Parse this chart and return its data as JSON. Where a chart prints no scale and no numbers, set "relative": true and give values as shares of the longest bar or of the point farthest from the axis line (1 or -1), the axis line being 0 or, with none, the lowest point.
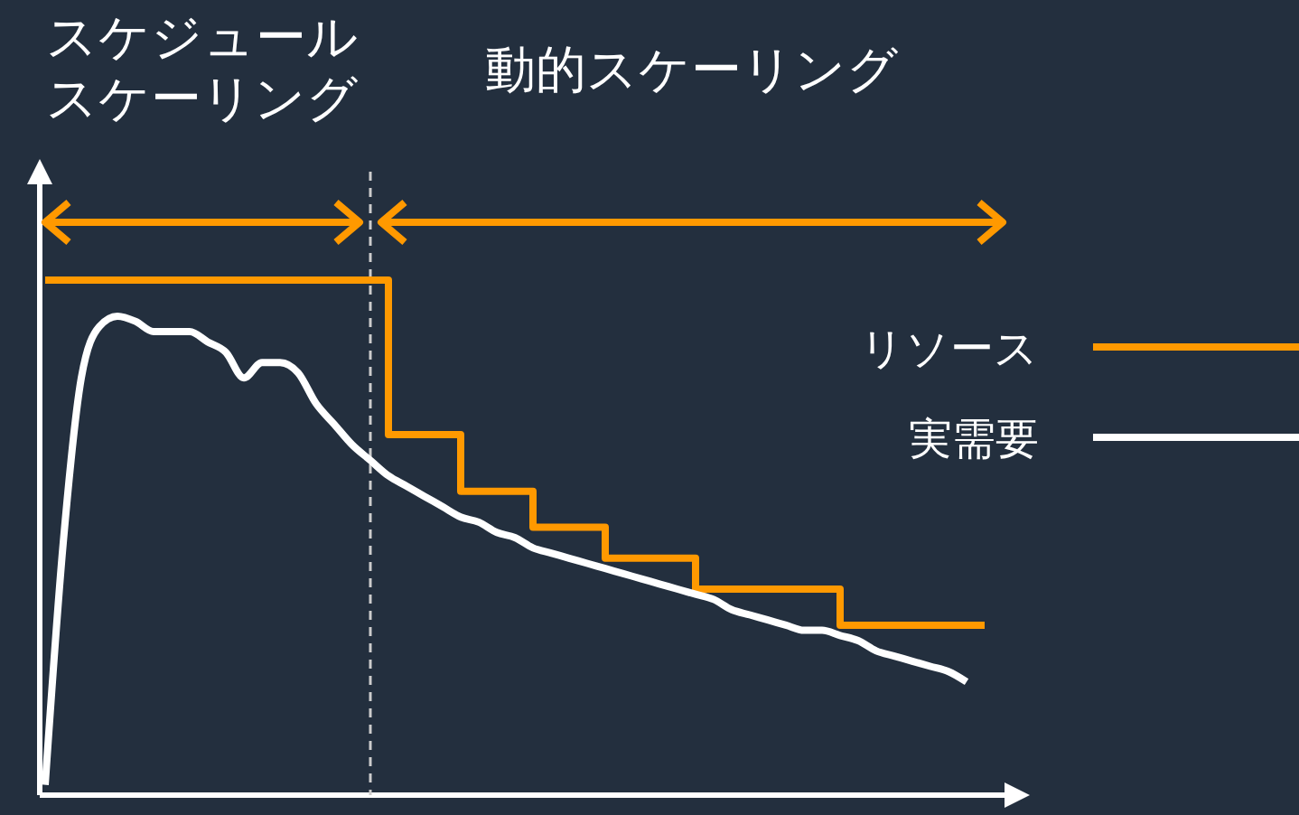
{
  "chart_data": {
    "type": "step",
    "relative": true,
    "categories": [
      null,
      null,
      null,
      null,
      null,
      null,
      null,
      null,
      null,
      null,
      null,
      null,
      null,
      null,
      null,
      null,
      null,
      null,
      null,
      null,
      null,
      null,
      null,
      null,
      null,
      null,
      null,
      null,
      null,
      null,
      null,
      null,
      null,
      null,
      null,
      null,
      null,
      null,
      null,
      null,
      null,
      null,
      null,
      null,
      null,
      null,
      null,
      null,
      null,
      null,
      null,
      null,
      null
    ],
    "series": [
      {
        "name": "リソース",
        "color": "#ff9900",
        "values": [
          1,
          1,
          1,
          1,
          1,
          1,
          1,
          1,
          1,
          1,
          1,
          1,
          1,
          1,
          1,
          1,
          1,
          1,
          1,
          0.7,
          0.7,
          0.7,
          0.7,
          0.59,
          0.59,
          0.59,
          0.59,
          0.52,
          0.52,
          0.52,
          0.52,
          0.46,
          0.46,
          0.46,
          0.46,
          0.46,
          0.4,
          0.4,
          0.4,
          0.4,
          0.4,
          0.4,
          0.4,
          0.4,
          0.33,
          0.33,
          0.33,
          0.33,
          0.33,
          0.33,
          0.33,
          0.33,
          0.33
        ]
      },
      {
        "name": "実需要",
        "color": "#ffffff",
        "type": "line",
        "values": [
          0.02,
          0.49,
          0.81,
          0.91,
          0.93,
          0.92,
          0.9,
          0.9,
          0.9,
          0.88,
          0.86,
          0.81,
          0.84,
          0.84,
          0.82,
          0.76,
          0.72,
          0.68,
          0.65,
          0.62,
          0.6,
          0.58,
          0.56,
          0.54,
          0.53,
          0.51,
          0.5,
          0.48,
          0.47,
          0.46,
          0.45,
          0.44,
          0.43,
          0.42,
          0.41,
          0.4,
          0.39,
          0.38,
          0.36,
          0.35,
          0.34,
          0.33,
          0.32,
          0.32,
          0.31,
          0.3,
          0.28,
          0.27,
          0.26,
          0.25,
          0.24,
          0.22,
          null
        ]
      }
    ],
    "annotations": [
      "スケジュールスケーリング",
      "動的スケーリング"
    ],
    "legend": "right"
  }
}
